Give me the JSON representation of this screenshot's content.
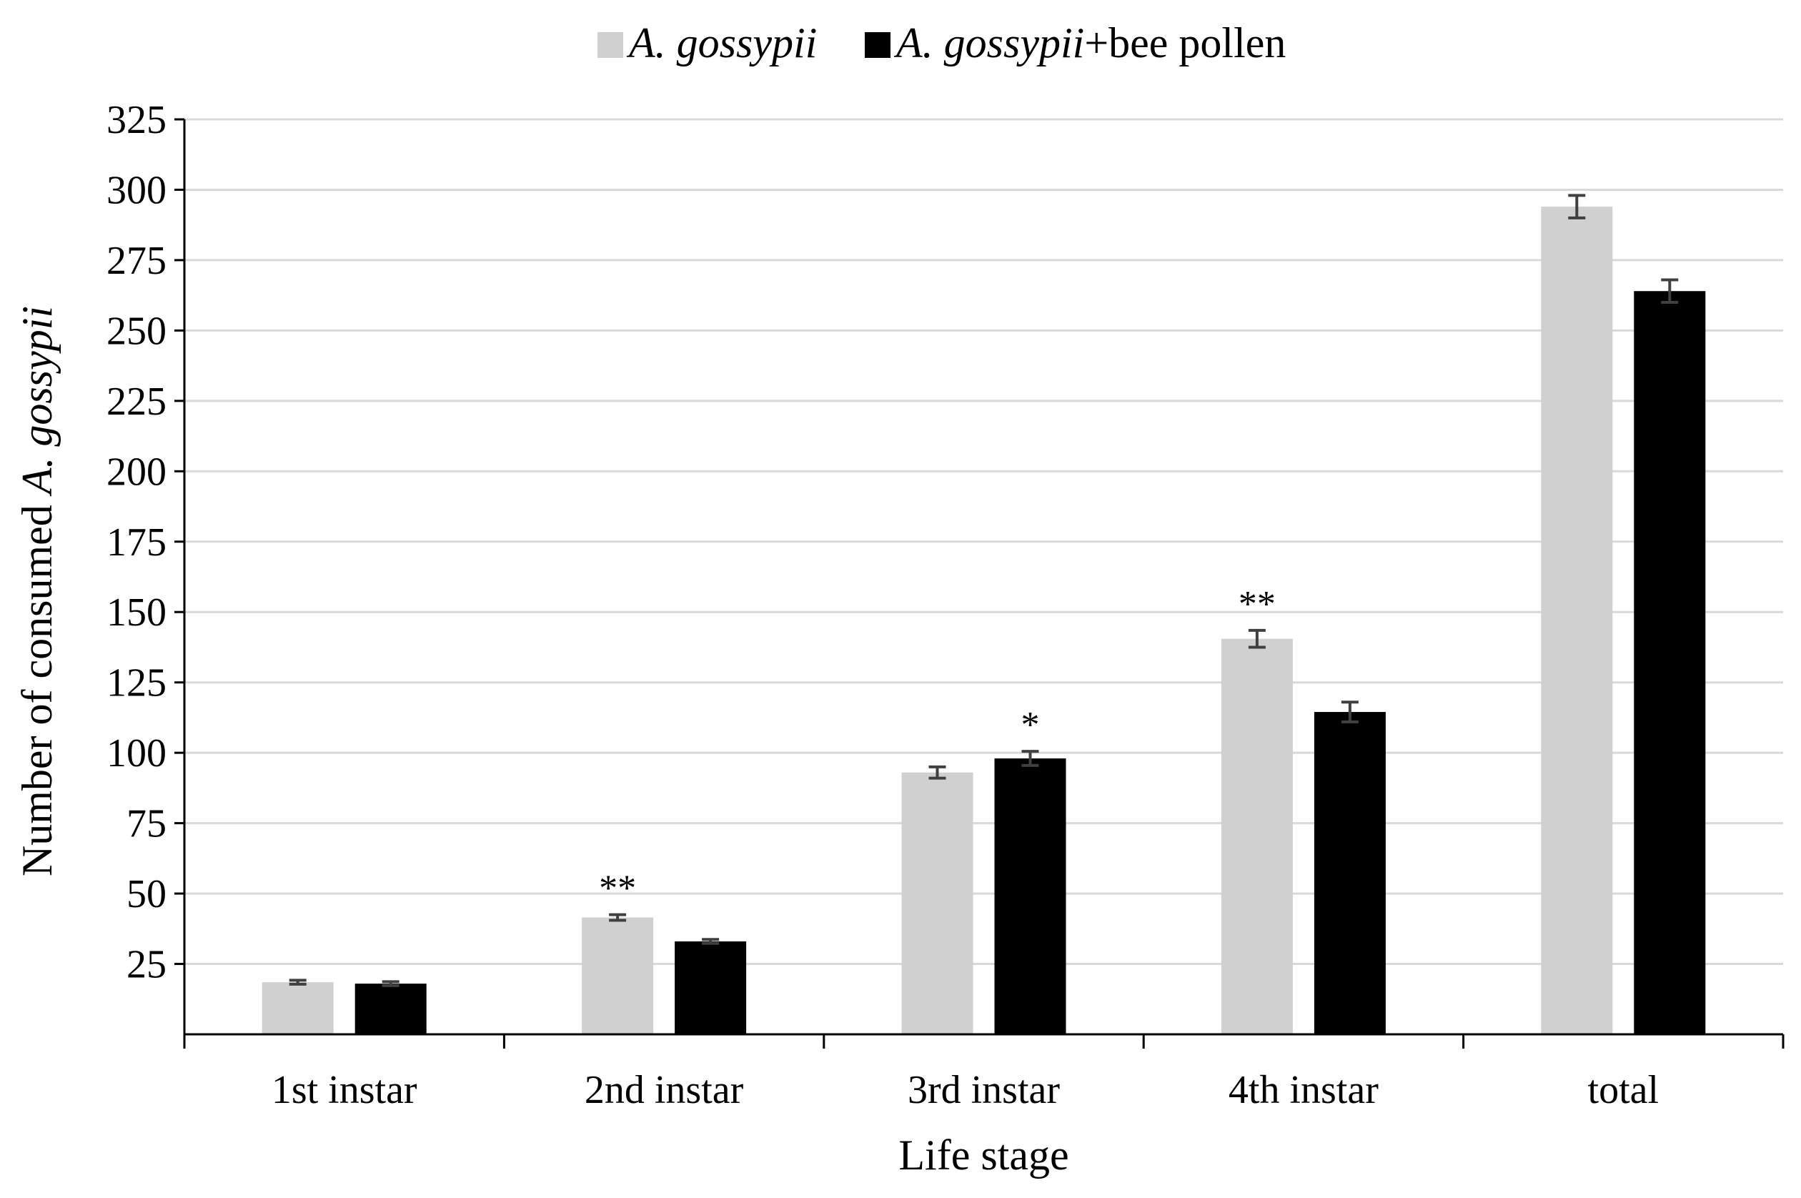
{
  "chart_data": {
    "type": "bar",
    "categories": [
      "1st instar",
      "2nd instar",
      "3rd instar",
      "4th instar",
      "total"
    ],
    "series": [
      {
        "name_italic": "A. gossypii",
        "name_suffix": "",
        "color": "#d0d0d0",
        "values": [
          18.5,
          41.5,
          93,
          140.5,
          294
        ],
        "errors": [
          0.7,
          1.0,
          2.0,
          3.0,
          4.0
        ],
        "annotations": [
          "",
          "**",
          "",
          "**",
          ""
        ]
      },
      {
        "name_italic": "A. gossypii",
        "name_suffix": "+bee pollen",
        "color": "#000000",
        "values": [
          18,
          33,
          98,
          114.5,
          264
        ],
        "errors": [
          0.7,
          0.7,
          2.5,
          3.5,
          4.0
        ],
        "annotations": [
          "",
          "",
          "*",
          "",
          ""
        ]
      }
    ],
    "xlabel": "Life stage",
    "ylabel_prefix": "Number of consumed ",
    "ylabel_italic": "A. gossypii",
    "ylim": [
      0,
      325
    ],
    "yticks": [
      25,
      50,
      75,
      100,
      125,
      150,
      175,
      200,
      225,
      250,
      275,
      300,
      325
    ],
    "grid": true,
    "legend_position": "top-center",
    "gridline_color": "#d9d9d9",
    "axis_color": "#000000",
    "errorbar_color": "#404040"
  }
}
